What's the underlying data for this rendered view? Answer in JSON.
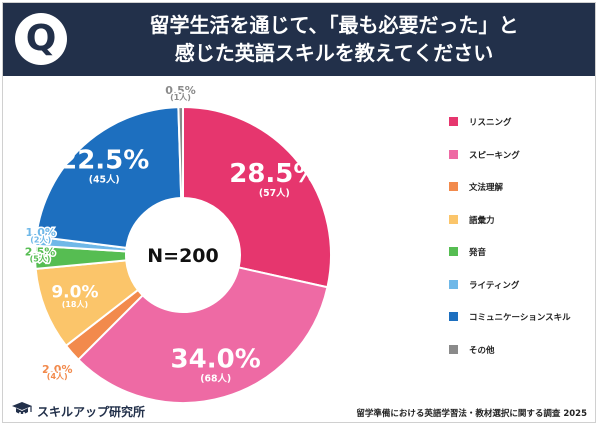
{
  "header": {
    "badge": "Q",
    "title_line1": "留学生活を通じて、「最も必要だった」と",
    "title_line2": "感じた英語スキルを教えてください"
  },
  "chart_data": {
    "type": "pie",
    "center_label": "N=200",
    "legend_position": "right",
    "slices": [
      {
        "label": "リスニング",
        "value": 28.5,
        "pct_label": "28.5%",
        "count_label": "(57人)",
        "color": "#e6366e"
      },
      {
        "label": "スピーキング",
        "value": 34.0,
        "pct_label": "34.0%",
        "count_label": "(68人)",
        "color": "#ee6aa4"
      },
      {
        "label": "文法理解",
        "value": 2.0,
        "pct_label": "2.0%",
        "count_label": "(4人)",
        "color": "#f28a4c"
      },
      {
        "label": "語彙力",
        "value": 9.0,
        "pct_label": "9.0%",
        "count_label": "(18人)",
        "color": "#fbc56a"
      },
      {
        "label": "発音",
        "value": 2.5,
        "pct_label": "2.5%",
        "count_label": "(5人)",
        "color": "#56bd52"
      },
      {
        "label": "ライティング",
        "value": 1.0,
        "pct_label": "1.0%",
        "count_label": "(2人)",
        "color": "#6fb8e8"
      },
      {
        "label": "コミュニケーションスキル",
        "value": 22.5,
        "pct_label": "22.5%",
        "count_label": "(45人)",
        "color": "#1d6fbf"
      },
      {
        "label": "その他",
        "value": 0.5,
        "pct_label": "0.5%",
        "count_label": "(1人)",
        "color": "#8a8a8a"
      }
    ]
  },
  "footer": {
    "brand": "スキルアップ研究所",
    "source": "留学準備における英語学習法・教材選択に関する調査 2025"
  }
}
